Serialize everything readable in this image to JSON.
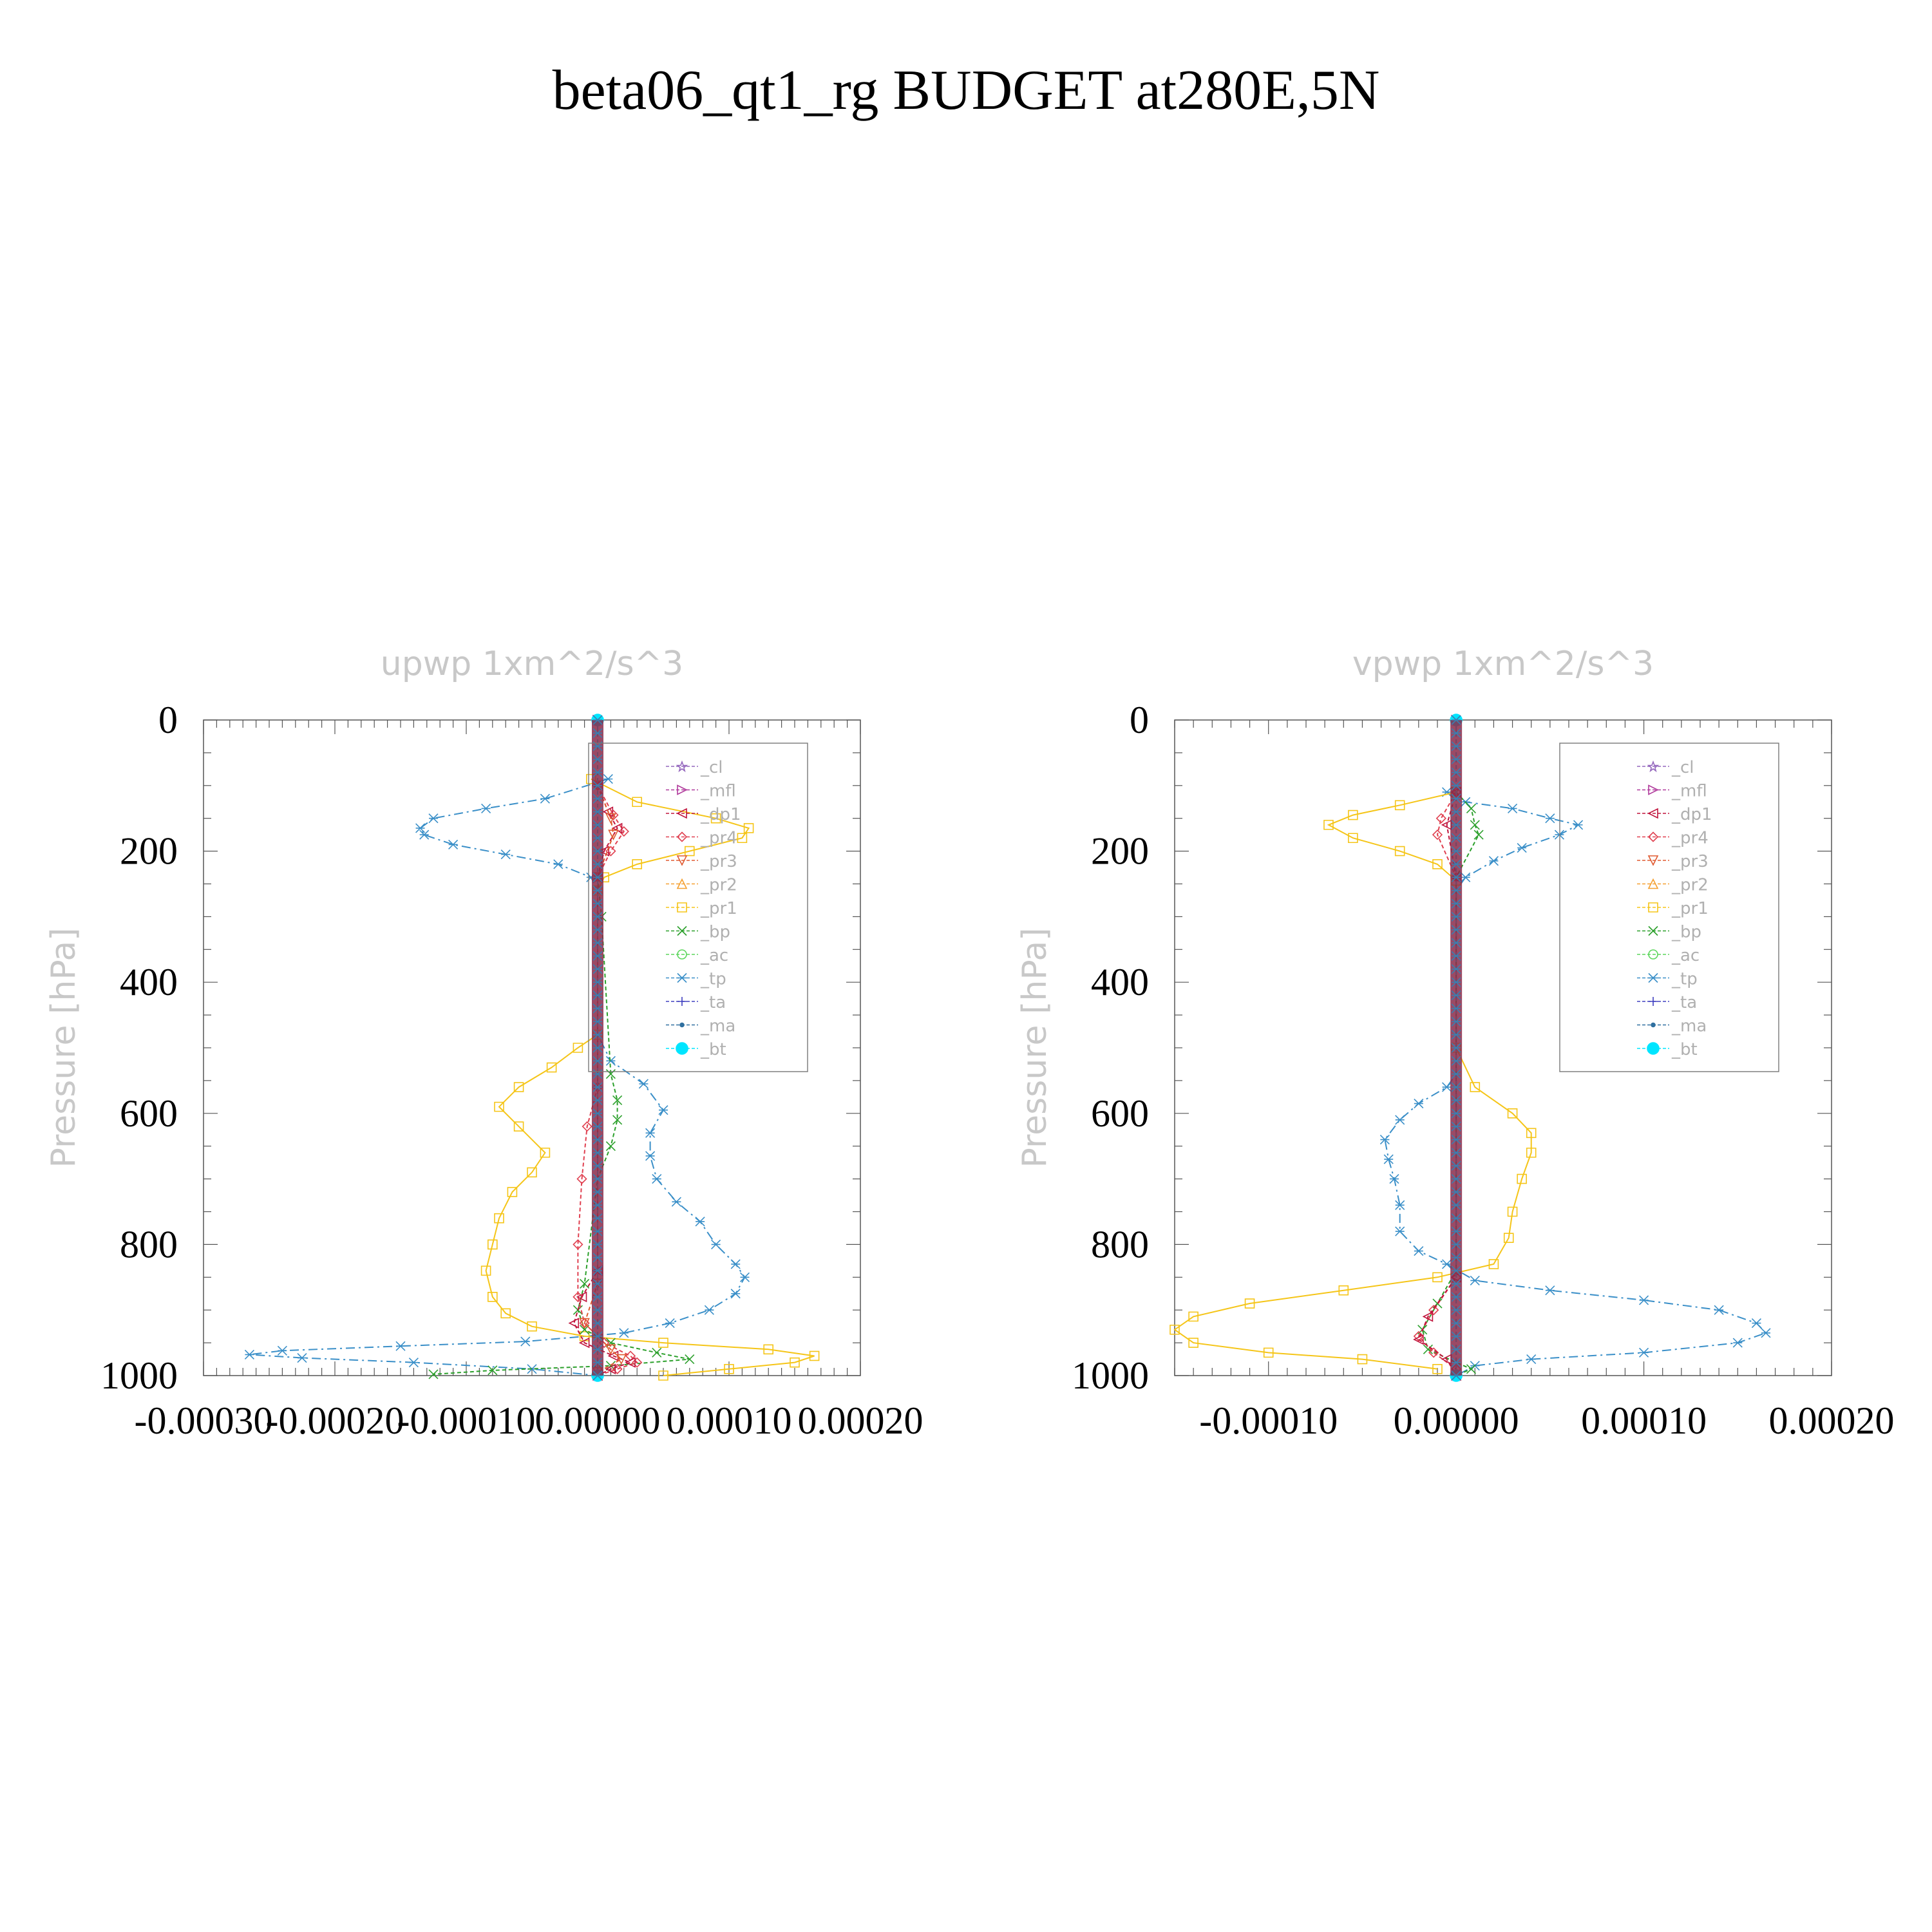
{
  "title": "beta06_qt1_rg  BUDGET at280E,5N",
  "legend_entries": [
    {
      "label": "_cl",
      "color": "#9467bd",
      "marker": "star"
    },
    {
      "label": "_mfl",
      "color": "#b03a9c",
      "marker": "tri-right"
    },
    {
      "label": "_dp1",
      "color": "#c0143c",
      "marker": "tri-left"
    },
    {
      "label": "_pr4",
      "color": "#e04050",
      "marker": "diamond"
    },
    {
      "label": "_pr3",
      "color": "#e05a30",
      "marker": "tri-down"
    },
    {
      "label": "_pr2",
      "color": "#f5a030",
      "marker": "tri-up"
    },
    {
      "label": "_pr1",
      "color": "#f5c518",
      "marker": "square"
    },
    {
      "label": "_bp",
      "color": "#2ca02c",
      "marker": "x"
    },
    {
      "label": "_ac",
      "color": "#5cd65c",
      "marker": "circle"
    },
    {
      "label": "_tp",
      "color": "#3a8fc8",
      "marker": "asterisk"
    },
    {
      "label": "_ta",
      "color": "#4040c0",
      "marker": "plus"
    },
    {
      "label": "_ma",
      "color": "#3070a0",
      "marker": "dot"
    },
    {
      "label": "_bt",
      "color": "#00e5ff",
      "marker": "filled-circle"
    }
  ],
  "chart_data": [
    {
      "type": "line",
      "title": "upwp   1xm^2/s^3",
      "ylabel": "Pressure [hPa]",
      "xlim": [
        -0.0003,
        0.0002
      ],
      "ylim": [
        1000,
        0
      ],
      "x_ticks": [
        -0.0003,
        -0.0002,
        -0.0001,
        0.0,
        0.0001,
        0.0002
      ],
      "x_tick_labels": [
        "-0.00030",
        "-0.00020",
        "-0.00010",
        "0.00000",
        "0.00010",
        "0.00020"
      ],
      "y_ticks": [
        0,
        200,
        400,
        600,
        800,
        1000
      ],
      "y_tick_labels": [
        "0",
        "200",
        "400",
        "600",
        "800",
        "1000"
      ],
      "legend_position": "top-right",
      "series": [
        {
          "name": "_tp",
          "points": [
            [
              8e-06,
              90
            ],
            [
              -4e-05,
              120
            ],
            [
              -8.5e-05,
              135
            ],
            [
              -0.000125,
              150
            ],
            [
              -0.000135,
              165
            ],
            [
              -0.000132,
              175
            ],
            [
              -0.00011,
              190
            ],
            [
              -7e-05,
              205
            ],
            [
              -3e-05,
              220
            ],
            [
              -5e-06,
              240
            ],
            [
              0.0,
              260
            ],
            [
              0.0,
              480
            ],
            [
              1e-05,
              520
            ],
            [
              3.5e-05,
              555
            ],
            [
              5e-05,
              595
            ],
            [
              4e-05,
              630
            ],
            [
              4e-05,
              665
            ],
            [
              4.5e-05,
              700
            ],
            [
              6e-05,
              735
            ],
            [
              7.8e-05,
              765
            ],
            [
              9e-05,
              800
            ],
            [
              0.000105,
              830
            ],
            [
              0.000112,
              850
            ],
            [
              0.000105,
              875
            ],
            [
              8.5e-05,
              900
            ],
            [
              5.5e-05,
              920
            ],
            [
              2e-05,
              935
            ],
            [
              -5.5e-05,
              948
            ],
            [
              -0.00015,
              955
            ],
            [
              -0.00024,
              962
            ],
            [
              -0.000265,
              968
            ],
            [
              -0.000225,
              973
            ],
            [
              -0.00014,
              980
            ],
            [
              -5e-05,
              990
            ],
            [
              0.0,
              1000
            ]
          ]
        },
        {
          "name": "_pr1",
          "points": [
            [
              -5e-06,
              90
            ],
            [
              3e-05,
              125
            ],
            [
              9e-05,
              150
            ],
            [
              0.000115,
              165
            ],
            [
              0.00011,
              180
            ],
            [
              7e-05,
              200
            ],
            [
              3e-05,
              220
            ],
            [
              5e-06,
              240
            ],
            [
              0.0,
              260
            ],
            [
              0.0,
              480
            ],
            [
              -1.5e-05,
              500
            ],
            [
              -3.5e-05,
              530
            ],
            [
              -6e-05,
              560
            ],
            [
              -7.5e-05,
              590
            ],
            [
              -6e-05,
              620
            ],
            [
              -4e-05,
              660
            ],
            [
              -5e-05,
              690
            ],
            [
              -6.5e-05,
              720
            ],
            [
              -7.5e-05,
              760
            ],
            [
              -8e-05,
              800
            ],
            [
              -8.5e-05,
              840
            ],
            [
              -8e-05,
              880
            ],
            [
              -7e-05,
              905
            ],
            [
              -5e-05,
              925
            ],
            [
              -1e-05,
              940
            ],
            [
              5e-05,
              950
            ],
            [
              0.00013,
              960
            ],
            [
              0.000165,
              970
            ],
            [
              0.00015,
              980
            ],
            [
              0.0001,
              990
            ],
            [
              5e-05,
              1000
            ]
          ]
        },
        {
          "name": "_bp",
          "points": [
            [
              0.0,
              240
            ],
            [
              3e-06,
              300
            ],
            [
              1e-05,
              540
            ],
            [
              1.5e-05,
              580
            ],
            [
              1.5e-05,
              610
            ],
            [
              1e-05,
              650
            ],
            [
              0.0,
              700
            ],
            [
              -1e-05,
              860
            ],
            [
              -1.5e-05,
              900
            ],
            [
              -1e-05,
              930
            ],
            [
              1e-05,
              950
            ],
            [
              4.5e-05,
              965
            ],
            [
              7e-05,
              975
            ],
            [
              1e-05,
              985
            ],
            [
              -8e-05,
              992
            ],
            [
              -0.000125,
              998
            ]
          ]
        },
        {
          "name": "_pr4",
          "points": [
            [
              0.0,
              100
            ],
            [
              1.2e-05,
              145
            ],
            [
              2e-05,
              170
            ],
            [
              1e-05,
              200
            ],
            [
              0.0,
              240
            ],
            [
              0.0,
              560
            ],
            [
              -8e-06,
              620
            ],
            [
              -1.2e-05,
              700
            ],
            [
              -1.5e-05,
              800
            ],
            [
              -1.5e-05,
              880
            ],
            [
              -1e-05,
              920
            ],
            [
              5e-06,
              950
            ],
            [
              2.5e-05,
              970
            ],
            [
              3e-05,
              980
            ],
            [
              1.5e-05,
              990
            ],
            [
              0.0,
              1000
            ]
          ]
        },
        {
          "name": "_dp1",
          "points": [
            [
              0.0,
              100
            ],
            [
              8e-06,
              140
            ],
            [
              1.5e-05,
              165
            ],
            [
              5e-06,
              200
            ],
            [
              0.0,
              240
            ],
            [
              0.0,
              840
            ],
            [
              -1.2e-05,
              880
            ],
            [
              -1.8e-05,
              920
            ],
            [
              -1e-05,
              950
            ],
            [
              1.2e-05,
              970
            ],
            [
              2.5e-05,
              980
            ],
            [
              1e-05,
              990
            ],
            [
              0.0,
              1000
            ]
          ]
        },
        {
          "name": "_pr3",
          "points": [
            [
              0.0,
              100
            ],
            [
              1e-05,
              150
            ],
            [
              1.2e-05,
              175
            ],
            [
              0.0,
              240
            ],
            [
              0.0,
              860
            ],
            [
              -1e-05,
              920
            ],
            [
              1e-05,
              960
            ],
            [
              1.8e-05,
              975
            ],
            [
              0.0,
              995
            ]
          ]
        },
        {
          "name": "_mfl",
          "points": [
            [
              0.0,
              0
            ],
            [
              0.0,
              1000
            ]
          ]
        },
        {
          "name": "_cl",
          "points": [
            [
              0.0,
              0
            ],
            [
              0.0,
              1000
            ]
          ]
        },
        {
          "name": "_bt",
          "points": [
            [
              0.0,
              0
            ],
            [
              0.0,
              1000
            ]
          ]
        }
      ]
    },
    {
      "type": "line",
      "title": "vpwp   1xm^2/s^3",
      "ylabel": "Pressure [hPa]",
      "xlim": [
        -0.00015,
        0.0002
      ],
      "ylim": [
        1000,
        0
      ],
      "x_ticks": [
        -0.0001,
        0.0,
        0.0001,
        0.0002
      ],
      "x_tick_labels": [
        "-0.00010",
        "0.00000",
        "0.00010",
        "0.00020"
      ],
      "y_ticks": [
        0,
        200,
        400,
        600,
        800,
        1000
      ],
      "y_tick_labels": [
        "0",
        "200",
        "400",
        "600",
        "800",
        "1000"
      ],
      "legend_position": "top-right",
      "series": [
        {
          "name": "_tp",
          "points": [
            [
              -5e-06,
              110
            ],
            [
              5e-06,
              125
            ],
            [
              3e-05,
              135
            ],
            [
              5e-05,
              150
            ],
            [
              6.5e-05,
              160
            ],
            [
              5.5e-05,
              175
            ],
            [
              3.5e-05,
              195
            ],
            [
              2e-05,
              215
            ],
            [
              5e-06,
              240
            ],
            [
              0.0,
              260
            ],
            [
              0.0,
              540
            ],
            [
              -5e-06,
              560
            ],
            [
              -2e-05,
              585
            ],
            [
              -3e-05,
              610
            ],
            [
              -3.8e-05,
              640
            ],
            [
              -3.6e-05,
              670
            ],
            [
              -3.3e-05,
              700
            ],
            [
              -3e-05,
              740
            ],
            [
              -3e-05,
              780
            ],
            [
              -2e-05,
              810
            ],
            [
              -5e-06,
              830
            ],
            [
              1e-05,
              855
            ],
            [
              5e-05,
              870
            ],
            [
              0.0001,
              885
            ],
            [
              0.00014,
              900
            ],
            [
              0.00016,
              920
            ],
            [
              0.000165,
              935
            ],
            [
              0.00015,
              950
            ],
            [
              0.0001,
              965
            ],
            [
              4e-05,
              975
            ],
            [
              1e-05,
              985
            ],
            [
              0.0,
              1000
            ]
          ]
        },
        {
          "name": "_pr1",
          "points": [
            [
              0.0,
              110
            ],
            [
              -3e-05,
              130
            ],
            [
              -5.5e-05,
              145
            ],
            [
              -6.8e-05,
              160
            ],
            [
              -5.5e-05,
              180
            ],
            [
              -3e-05,
              200
            ],
            [
              -1e-05,
              220
            ],
            [
              0.0,
              245
            ],
            [
              0.0,
              500
            ],
            [
              1e-05,
              560
            ],
            [
              3e-05,
              600
            ],
            [
              4e-05,
              630
            ],
            [
              4e-05,
              660
            ],
            [
              3.5e-05,
              700
            ],
            [
              3e-05,
              750
            ],
            [
              2.8e-05,
              790
            ],
            [
              2e-05,
              830
            ],
            [
              -1e-05,
              850
            ],
            [
              -6e-05,
              870
            ],
            [
              -0.00011,
              890
            ],
            [
              -0.00014,
              910
            ],
            [
              -0.00015,
              930
            ],
            [
              -0.00014,
              950
            ],
            [
              -0.0001,
              965
            ],
            [
              -5e-05,
              975
            ],
            [
              -1e-05,
              990
            ]
          ]
        },
        {
          "name": "_bp",
          "points": [
            [
              0.0,
              110
            ],
            [
              8e-06,
              135
            ],
            [
              1e-05,
              160
            ],
            [
              1.2e-05,
              175
            ],
            [
              0.0,
              240
            ],
            [
              0.0,
              840
            ],
            [
              -1e-05,
              890
            ],
            [
              -1.8e-05,
              930
            ],
            [
              -1.5e-05,
              960
            ],
            [
              0.0,
              980
            ],
            [
              8e-06,
              990
            ],
            [
              0.0,
              1000
            ]
          ]
        },
        {
          "name": "_pr4",
          "points": [
            [
              0.0,
              110
            ],
            [
              -8e-06,
              150
            ],
            [
              -1e-05,
              175
            ],
            [
              0.0,
              240
            ],
            [
              0.0,
              850
            ],
            [
              -1.2e-05,
              900
            ],
            [
              -2e-05,
              940
            ],
            [
              -1.2e-05,
              965
            ],
            [
              0.0,
              990
            ]
          ]
        },
        {
          "name": "_dp1",
          "points": [
            [
              0.0,
              110
            ],
            [
              -5e-06,
              160
            ],
            [
              0.0,
              240
            ],
            [
              0.0,
              850
            ],
            [
              -1.5e-05,
              910
            ],
            [
              -2e-05,
              945
            ],
            [
              -5e-06,
              975
            ],
            [
              0.0,
              1000
            ]
          ]
        },
        {
          "name": "_mfl",
          "points": [
            [
              0.0,
              0
            ],
            [
              0.0,
              1000
            ]
          ]
        },
        {
          "name": "_cl",
          "points": [
            [
              0.0,
              0
            ],
            [
              0.0,
              1000
            ]
          ]
        },
        {
          "name": "_bt",
          "points": [
            [
              0.0,
              0
            ],
            [
              0.0,
              1000
            ]
          ]
        }
      ]
    }
  ]
}
